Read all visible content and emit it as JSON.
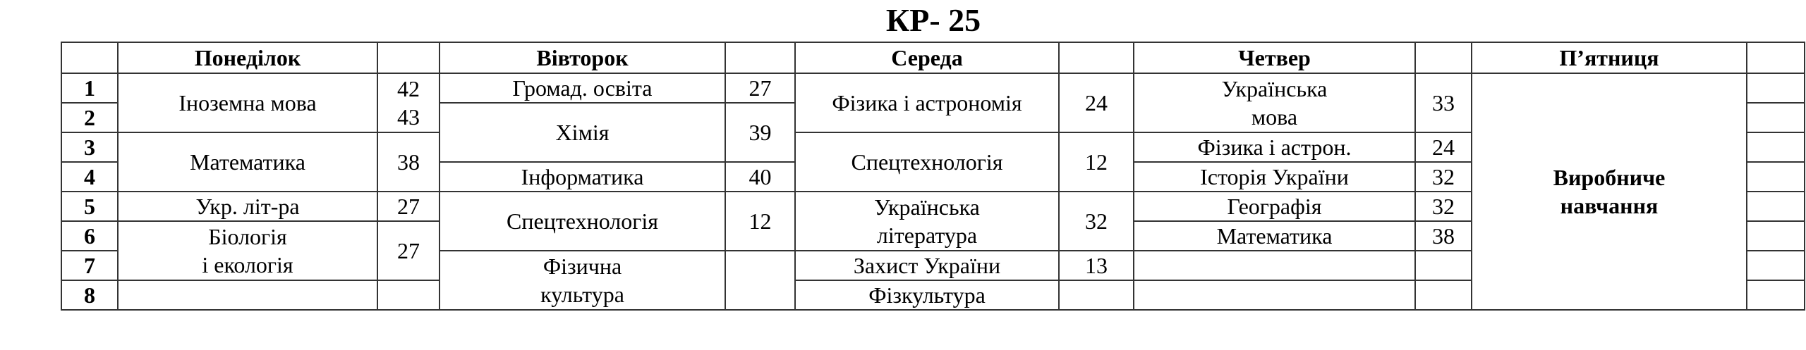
{
  "title": "КР- 25",
  "headers": [
    "",
    "Понеділок",
    "",
    "Вівторок",
    "",
    "Середа",
    "",
    "Четвер",
    "",
    "П’ятниця",
    ""
  ],
  "rows": [
    [
      {
        "t": "1",
        "c": "num"
      },
      {
        "t": "Іноземна мова",
        "rs": 2
      },
      {
        "t": "42\n43",
        "rs": 2
      },
      {
        "t": "Громад. освіта"
      },
      {
        "t": "27"
      },
      {
        "t": "Фізика і астрономія",
        "rs": 2
      },
      {
        "t": "24",
        "rs": 2
      },
      {
        "t": "Українська\nмова",
        "rs": 2
      },
      {
        "t": "33",
        "rs": 2
      },
      {
        "t": "Виробниче\nнавчання",
        "rs": 8,
        "c": "bold"
      },
      {
        "t": ""
      }
    ],
    [
      {
        "t": "2",
        "c": "num"
      },
      {
        "t": "Хімія",
        "rs": 2
      },
      {
        "t": "39",
        "rs": 2
      },
      {
        "t": ""
      }
    ],
    [
      {
        "t": "3",
        "c": "num"
      },
      {
        "t": "Математика",
        "rs": 2
      },
      {
        "t": "38",
        "rs": 2
      },
      {
        "t": "Спецтехнологія",
        "rs": 2
      },
      {
        "t": "12",
        "rs": 2
      },
      {
        "t": "Фізика і астрон."
      },
      {
        "t": "24"
      },
      {
        "t": ""
      }
    ],
    [
      {
        "t": "4",
        "c": "num"
      },
      {
        "t": "Інформатика"
      },
      {
        "t": "40"
      },
      {
        "t": "Історія України"
      },
      {
        "t": "32"
      },
      {
        "t": ""
      }
    ],
    [
      {
        "t": "5",
        "c": "num"
      },
      {
        "t": "Укр. літ-ра"
      },
      {
        "t": "27"
      },
      {
        "t": "Спецтехнологія",
        "rs": 2
      },
      {
        "t": "12",
        "rs": 2
      },
      {
        "t": "Українська\nлітература",
        "rs": 2
      },
      {
        "t": "32",
        "rs": 2
      },
      {
        "t": "Географія"
      },
      {
        "t": "32"
      },
      {
        "t": ""
      }
    ],
    [
      {
        "t": "6",
        "c": "num"
      },
      {
        "t": "Біологія\nі екологія",
        "rs": 2
      },
      {
        "t": "27",
        "rs": 2
      },
      {
        "t": "Математика"
      },
      {
        "t": "38"
      },
      {
        "t": ""
      }
    ],
    [
      {
        "t": "7",
        "c": "num"
      },
      {
        "t": "Фізична\nкультура",
        "rs": 2
      },
      {
        "t": "",
        "rs": 2
      },
      {
        "t": "Захист України"
      },
      {
        "t": "13"
      },
      {
        "t": ""
      },
      {
        "t": ""
      },
      {
        "t": ""
      }
    ],
    [
      {
        "t": "8",
        "c": "num"
      },
      {
        "t": ""
      },
      {
        "t": ""
      },
      {
        "t": "Фізкультура"
      },
      {
        "t": ""
      },
      {
        "t": ""
      },
      {
        "t": ""
      },
      {
        "t": ""
      }
    ]
  ]
}
